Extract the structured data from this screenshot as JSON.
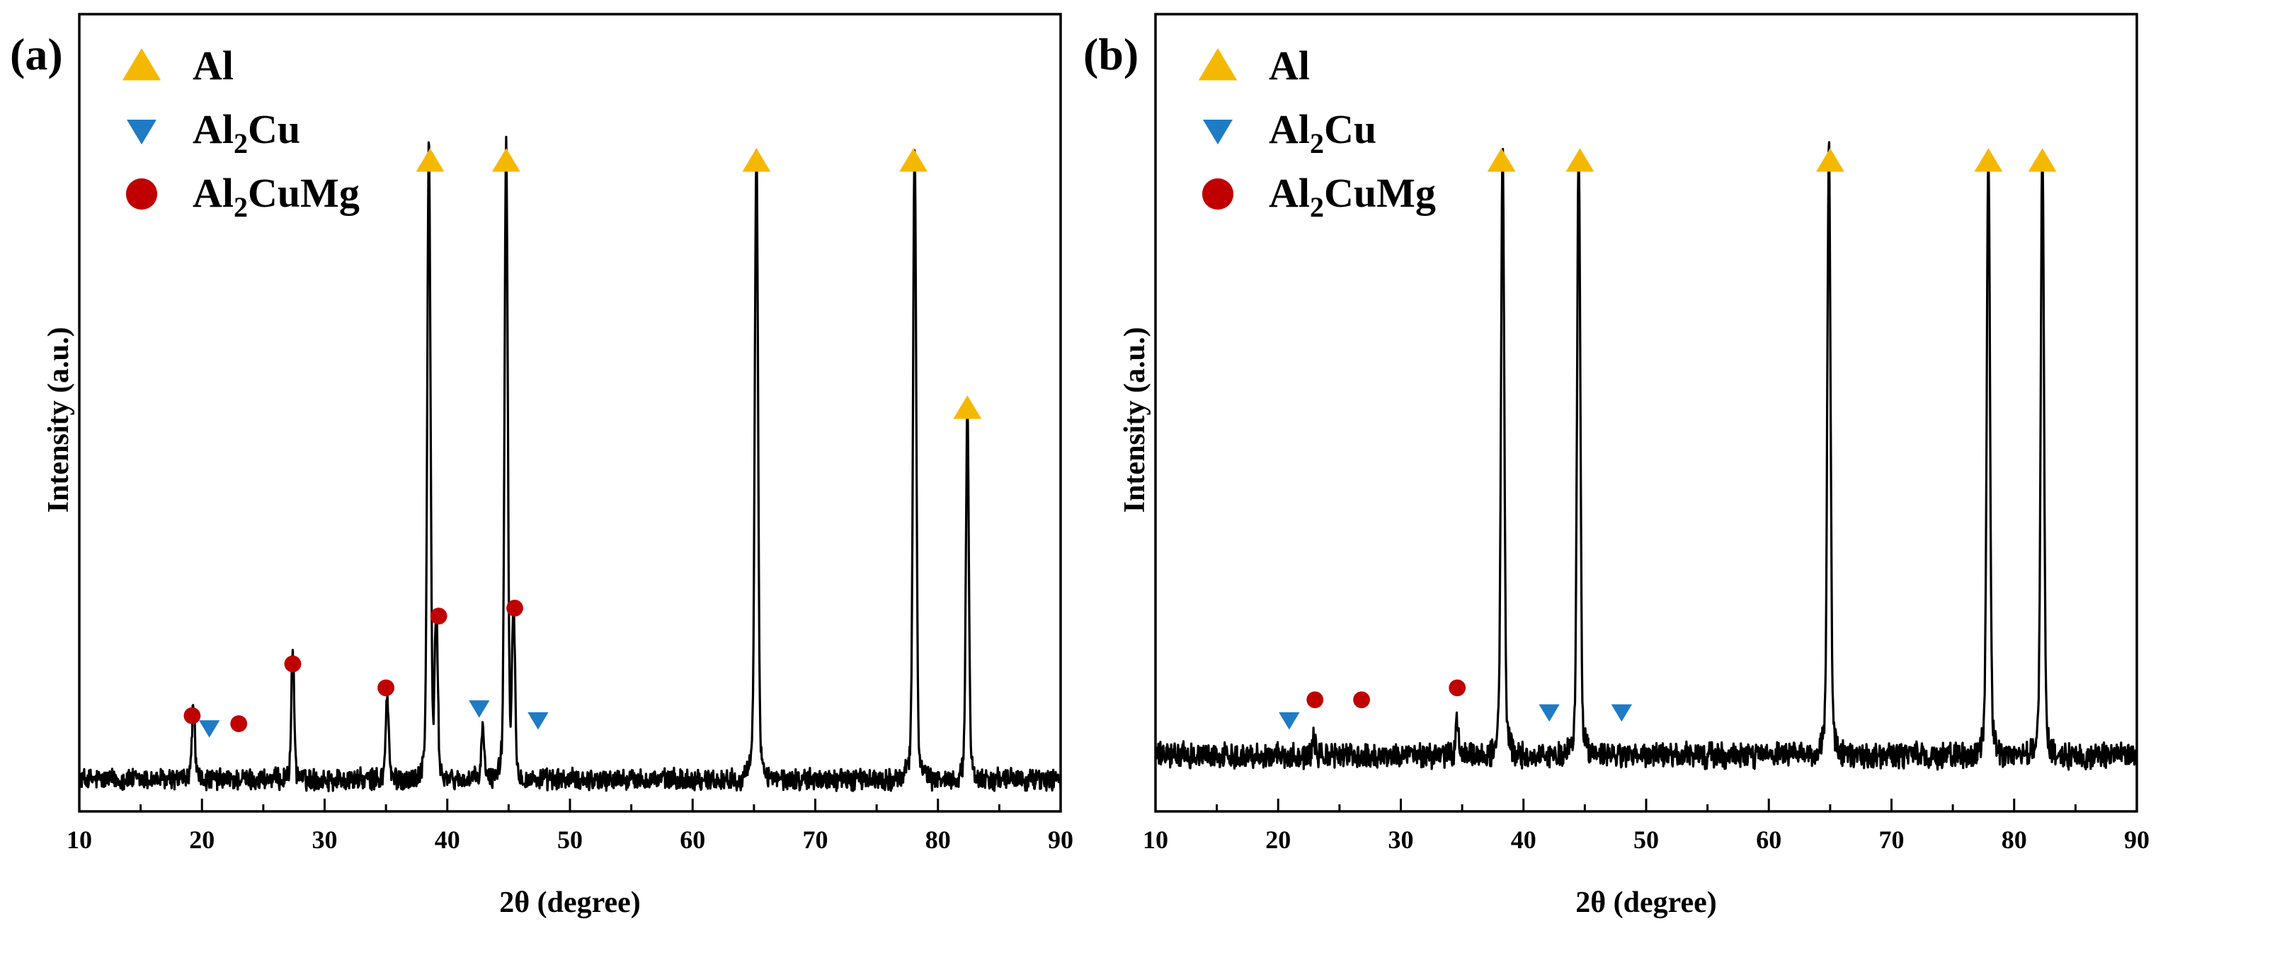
{
  "chart_data": [
    {
      "type": "line",
      "panel_label": "(a)",
      "title": "",
      "xlabel": "2θ (degree)",
      "ylabel": "Intensity (a.u.)",
      "xlim": [
        10,
        90
      ],
      "ylim": [
        0,
        100
      ],
      "x_ticks": [
        10,
        20,
        30,
        40,
        50,
        60,
        70,
        80,
        90
      ],
      "x_tick_labels": [
        "10",
        "20",
        "30",
        "40",
        "50",
        "60",
        "70",
        "80",
        "90"
      ],
      "legend": [
        {
          "name": "Al",
          "marker": "triangle-up",
          "color": "#F5B800"
        },
        {
          "name": "Al",
          "subscript": "2",
          "suffix": "Cu",
          "marker": "triangle-down",
          "color": "#1F7BC4"
        },
        {
          "name": "Al",
          "subscript": "2",
          "suffix": "CuMg",
          "marker": "circle",
          "color": "#C00000"
        }
      ],
      "baseline": 4,
      "noise": 1.2,
      "peaks": [
        {
          "x": 19.3,
          "height": 9,
          "phase": "Al2CuMg"
        },
        {
          "x": 27.4,
          "height": 15,
          "phase": "Al2CuMg"
        },
        {
          "x": 35.1,
          "height": 10,
          "phase": "Al2CuMg"
        },
        {
          "x": 38.5,
          "height": 76,
          "phase": "Al"
        },
        {
          "x": 39.1,
          "height": 19,
          "phase": "Al2CuMg"
        },
        {
          "x": 42.9,
          "height": 6,
          "phase": "Al2Cu"
        },
        {
          "x": 44.8,
          "height": 76,
          "phase": "Al"
        },
        {
          "x": 45.4,
          "height": 20,
          "phase": "Al2CuMg"
        },
        {
          "x": 65.2,
          "height": 76,
          "phase": "Al"
        },
        {
          "x": 78.1,
          "height": 76,
          "phase": "Al"
        },
        {
          "x": 82.4,
          "height": 44,
          "phase": "Al"
        }
      ],
      "markers": [
        {
          "x": 19.2,
          "y": 12.0,
          "phase": "Al2CuMg"
        },
        {
          "x": 20.6,
          "y": 10.5,
          "phase": "Al2Cu"
        },
        {
          "x": 23.0,
          "y": 11.0,
          "phase": "Al2CuMg"
        },
        {
          "x": 27.4,
          "y": 18.5,
          "phase": "Al2CuMg"
        },
        {
          "x": 35.0,
          "y": 15.5,
          "phase": "Al2CuMg"
        },
        {
          "x": 38.6,
          "y": 81.5,
          "phase": "Al"
        },
        {
          "x": 39.3,
          "y": 24.5,
          "phase": "Al2CuMg"
        },
        {
          "x": 42.6,
          "y": 13.0,
          "phase": "Al2Cu"
        },
        {
          "x": 44.8,
          "y": 81.5,
          "phase": "Al"
        },
        {
          "x": 45.5,
          "y": 25.5,
          "phase": "Al2CuMg"
        },
        {
          "x": 47.4,
          "y": 11.5,
          "phase": "Al2Cu"
        },
        {
          "x": 65.2,
          "y": 81.5,
          "phase": "Al"
        },
        {
          "x": 78.0,
          "y": 81.5,
          "phase": "Al"
        },
        {
          "x": 82.4,
          "y": 50.5,
          "phase": "Al"
        }
      ]
    },
    {
      "type": "line",
      "panel_label": "(b)",
      "title": "",
      "xlabel": "2θ (degree)",
      "ylabel": "Intensity (a.u.)",
      "xlim": [
        10,
        90
      ],
      "ylim": [
        0,
        100
      ],
      "x_ticks": [
        10,
        20,
        30,
        40,
        50,
        60,
        70,
        80,
        90
      ],
      "x_tick_labels": [
        "10",
        "20",
        "30",
        "40",
        "50",
        "60",
        "70",
        "80",
        "90"
      ],
      "legend": [
        {
          "name": "Al",
          "marker": "triangle-up",
          "color": "#F5B800"
        },
        {
          "name": "Al",
          "subscript": "2",
          "suffix": "Cu",
          "marker": "triangle-down",
          "color": "#1F7BC4"
        },
        {
          "name": "Al",
          "subscript": "2",
          "suffix": "CuMg",
          "marker": "circle",
          "color": "#C00000"
        }
      ],
      "baseline": 7,
      "noise": 1.4,
      "peaks": [
        {
          "x": 22.9,
          "height": 2,
          "phase": "Al2CuMg"
        },
        {
          "x": 34.6,
          "height": 4,
          "phase": "Al2CuMg"
        },
        {
          "x": 38.3,
          "height": 73,
          "phase": "Al"
        },
        {
          "x": 44.5,
          "height": 73,
          "phase": "Al"
        },
        {
          "x": 64.9,
          "height": 73,
          "phase": "Al"
        },
        {
          "x": 77.9,
          "height": 73,
          "phase": "Al"
        },
        {
          "x": 82.3,
          "height": 73,
          "phase": "Al"
        }
      ],
      "markers": [
        {
          "x": 20.9,
          "y": 11.5,
          "phase": "Al2Cu"
        },
        {
          "x": 23.0,
          "y": 14.0,
          "phase": "Al2CuMg"
        },
        {
          "x": 26.8,
          "y": 14.0,
          "phase": "Al2CuMg"
        },
        {
          "x": 34.6,
          "y": 15.5,
          "phase": "Al2CuMg"
        },
        {
          "x": 38.2,
          "y": 81.5,
          "phase": "Al"
        },
        {
          "x": 42.1,
          "y": 12.5,
          "phase": "Al2Cu"
        },
        {
          "x": 44.6,
          "y": 81.5,
          "phase": "Al"
        },
        {
          "x": 48.0,
          "y": 12.5,
          "phase": "Al2Cu"
        },
        {
          "x": 65.0,
          "y": 81.5,
          "phase": "Al"
        },
        {
          "x": 77.9,
          "y": 81.5,
          "phase": "Al"
        },
        {
          "x": 82.3,
          "y": 81.5,
          "phase": "Al"
        }
      ]
    }
  ],
  "colors": {
    "Al": "#F5B800",
    "Al2Cu": "#1F7BC4",
    "Al2CuMg": "#C00000",
    "trace": "#000000"
  }
}
